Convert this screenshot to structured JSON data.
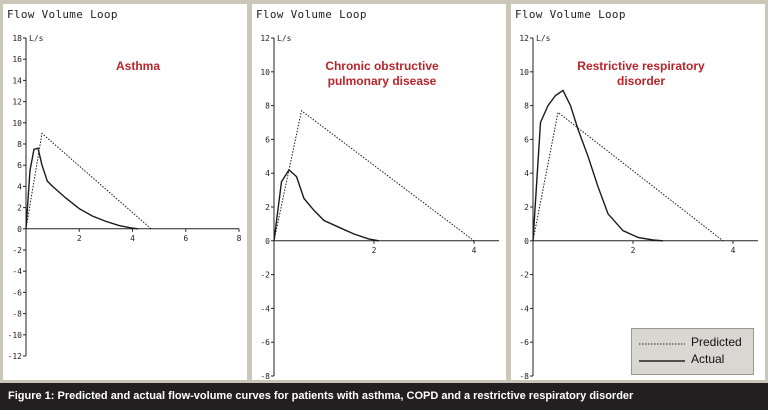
{
  "caption": "Figure 1: Predicted and actual flow-volume curves for patients with asthma, COPD and a restrictive respiratory disorder",
  "legend": {
    "predicted": "Predicted",
    "actual": "Actual"
  },
  "chart_data": [
    {
      "type": "line",
      "window_title": "Flow Volume Loop",
      "title": "Asthma",
      "ylabel": "L/s",
      "xlim": [
        0,
        8
      ],
      "ylim": [
        -12,
        18
      ],
      "xticks": [
        2,
        4,
        6,
        8
      ],
      "yticks": [
        -12,
        -10,
        -8,
        -6,
        -4,
        -2,
        0,
        2,
        4,
        6,
        8,
        10,
        12,
        14,
        16,
        18
      ],
      "series": [
        {
          "name": "Predicted",
          "x": [
            0,
            0.6,
            4.7
          ],
          "y": [
            0,
            9,
            0
          ]
        },
        {
          "name": "Actual",
          "x": [
            0,
            0.15,
            0.3,
            0.45,
            0.6,
            0.8,
            1.0,
            1.5,
            2.0,
            2.5,
            3.0,
            3.5,
            3.9,
            4.2
          ],
          "y": [
            0,
            5.5,
            7.5,
            7.6,
            6.0,
            4.5,
            4.0,
            2.9,
            1.9,
            1.2,
            0.7,
            0.3,
            0.1,
            0
          ]
        }
      ]
    },
    {
      "type": "line",
      "window_title": "Flow Volume Loop",
      "title": "Chronic obstructive pulmonary disease",
      "ylabel": "L/s",
      "xlim": [
        0,
        4.5
      ],
      "ylim": [
        -8,
        12
      ],
      "xticks": [
        2,
        4
      ],
      "yticks": [
        -8,
        -6,
        -4,
        -2,
        0,
        2,
        4,
        6,
        8,
        10,
        12
      ],
      "series": [
        {
          "name": "Predicted",
          "x": [
            0,
            0.55,
            4.0
          ],
          "y": [
            0,
            7.7,
            0
          ]
        },
        {
          "name": "Actual",
          "x": [
            0,
            0.15,
            0.3,
            0.45,
            0.6,
            0.8,
            1.0,
            1.3,
            1.6,
            1.9,
            2.1
          ],
          "y": [
            0,
            3.5,
            4.2,
            3.8,
            2.5,
            1.8,
            1.2,
            0.8,
            0.4,
            0.1,
            0
          ]
        }
      ]
    },
    {
      "type": "line",
      "window_title": "Flow Volume Loop",
      "title": "Restrictive respiratory disorder",
      "ylabel": "L/s",
      "xlim": [
        0,
        4.5
      ],
      "ylim": [
        -8,
        12
      ],
      "xticks": [
        2,
        4
      ],
      "yticks": [
        -8,
        -6,
        -4,
        -2,
        0,
        2,
        4,
        6,
        8,
        10,
        12
      ],
      "series": [
        {
          "name": "Predicted",
          "x": [
            0,
            0.5,
            3.8
          ],
          "y": [
            0,
            7.6,
            0
          ]
        },
        {
          "name": "Actual",
          "x": [
            0,
            0.15,
            0.3,
            0.45,
            0.6,
            0.75,
            0.9,
            1.1,
            1.3,
            1.5,
            1.8,
            2.1,
            2.4,
            2.6
          ],
          "y": [
            0,
            7.0,
            8.0,
            8.6,
            8.9,
            8.0,
            6.6,
            5.0,
            3.2,
            1.6,
            0.6,
            0.2,
            0.05,
            0
          ]
        }
      ]
    }
  ]
}
